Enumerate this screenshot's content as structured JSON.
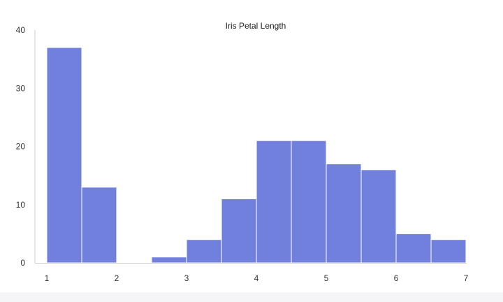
{
  "chart_data": {
    "type": "histogram",
    "title": "Iris Petal Length",
    "xlabel": "",
    "ylabel": "",
    "bin_edges": [
      1,
      1.5,
      2,
      2.5,
      3,
      3.5,
      4,
      4.5,
      5,
      5.5,
      6,
      6.5,
      7
    ],
    "values": [
      37,
      13,
      0,
      1,
      4,
      11,
      21,
      21,
      17,
      16,
      5,
      4
    ],
    "xlim": [
      1,
      7
    ],
    "ylim": [
      0,
      40
    ],
    "xticks": [
      "1",
      "2",
      "3",
      "4",
      "5",
      "6",
      "7"
    ],
    "yticks": [
      "0",
      "10",
      "20",
      "30",
      "40"
    ],
    "grid": false,
    "legend": "none",
    "colors": {
      "bar": "#7180dd",
      "bar_edge": "#ffffff",
      "axis": "#cccccc"
    }
  }
}
